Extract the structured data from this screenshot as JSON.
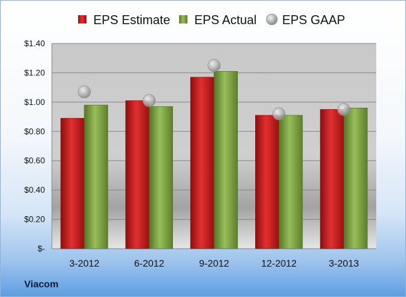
{
  "company": "Viacom",
  "colors": {
    "estimate": "#cc1a1a",
    "actual": "#7fa640",
    "gaap": "#b8b8b8"
  },
  "chart_data": {
    "type": "bar",
    "categories": [
      "3-2012",
      "6-2012",
      "9-2012",
      "12-2012",
      "3-2013"
    ],
    "series": [
      {
        "name": "EPS Estimate",
        "kind": "bar",
        "values": [
          0.89,
          1.01,
          1.17,
          0.91,
          0.95
        ]
      },
      {
        "name": "EPS Actual",
        "kind": "bar",
        "values": [
          0.98,
          0.97,
          1.21,
          0.91,
          0.96
        ]
      },
      {
        "name": "EPS GAAP",
        "kind": "marker",
        "values": [
          1.07,
          1.01,
          1.25,
          0.92,
          0.95
        ]
      }
    ],
    "y_ticks": [
      {
        "value": 0,
        "label": "$-"
      },
      {
        "value": 0.2,
        "label": "$0.20"
      },
      {
        "value": 0.4,
        "label": "$0.40"
      },
      {
        "value": 0.6,
        "label": "$0.60"
      },
      {
        "value": 0.8,
        "label": "$0.80"
      },
      {
        "value": 1.0,
        "label": "$1.00"
      },
      {
        "value": 1.2,
        "label": "$1.20"
      },
      {
        "value": 1.4,
        "label": "$1.40"
      }
    ],
    "ylim": [
      0,
      1.4
    ],
    "grid": true,
    "legend_position": "top"
  }
}
